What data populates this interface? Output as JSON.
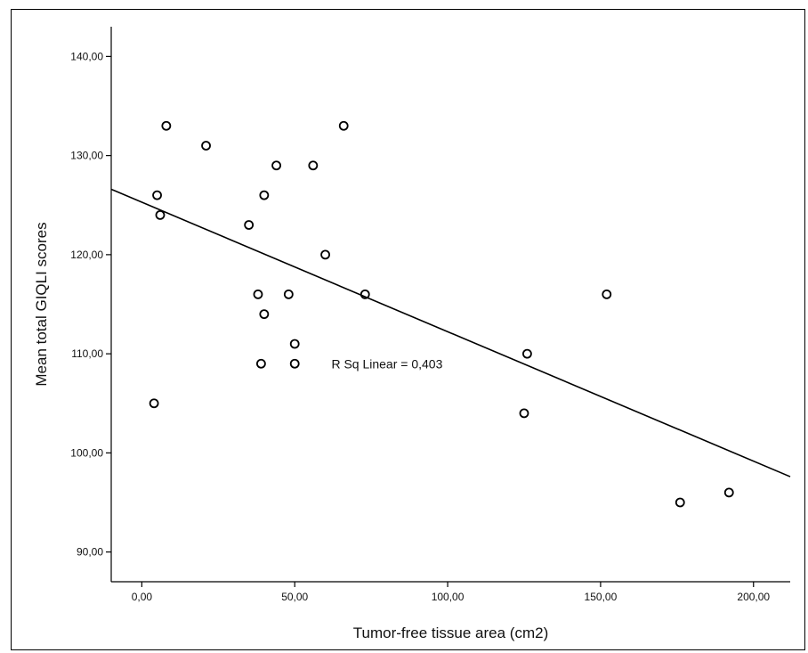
{
  "chart_data": {
    "type": "scatter",
    "title": "",
    "xlabel": "Tumor-free tissue area (cm2)",
    "ylabel": "Mean total GIQLI scores",
    "xlim": [
      -10,
      212
    ],
    "ylim": [
      87,
      143
    ],
    "x_ticks": [
      0,
      50,
      100,
      150,
      200
    ],
    "x_tick_labels": [
      "0,00",
      "50,00",
      "100,00",
      "150,00",
      "200,00"
    ],
    "y_ticks": [
      90,
      100,
      110,
      120,
      130,
      140
    ],
    "y_tick_labels": [
      "90,00",
      "100,00",
      "110,00",
      "120,00",
      "130,00",
      "140,00"
    ],
    "grid": false,
    "legend": "none",
    "points": [
      {
        "x": 8,
        "y": 133
      },
      {
        "x": 21,
        "y": 131
      },
      {
        "x": 5,
        "y": 126
      },
      {
        "x": 6,
        "y": 124
      },
      {
        "x": 4,
        "y": 105
      },
      {
        "x": 35,
        "y": 123
      },
      {
        "x": 38,
        "y": 116
      },
      {
        "x": 39,
        "y": 109
      },
      {
        "x": 40,
        "y": 126
      },
      {
        "x": 40,
        "y": 114
      },
      {
        "x": 44,
        "y": 129
      },
      {
        "x": 48,
        "y": 116
      },
      {
        "x": 50,
        "y": 111
      },
      {
        "x": 50,
        "y": 109
      },
      {
        "x": 56,
        "y": 129
      },
      {
        "x": 60,
        "y": 120
      },
      {
        "x": 66,
        "y": 133
      },
      {
        "x": 73,
        "y": 116
      },
      {
        "x": 125,
        "y": 104
      },
      {
        "x": 126,
        "y": 110
      },
      {
        "x": 152,
        "y": 116
      },
      {
        "x": 176,
        "y": 95
      },
      {
        "x": 192,
        "y": 96
      }
    ],
    "fit_line": {
      "x": [
        -10,
        212
      ],
      "y": [
        126.6,
        97.6
      ]
    },
    "annotation": "R Sq Linear = 0,403",
    "annotation_position": {
      "x": 62,
      "y": 109
    }
  },
  "colors": {
    "marker_stroke": "#000000",
    "line": "#000000",
    "background": "#ffffff"
  }
}
